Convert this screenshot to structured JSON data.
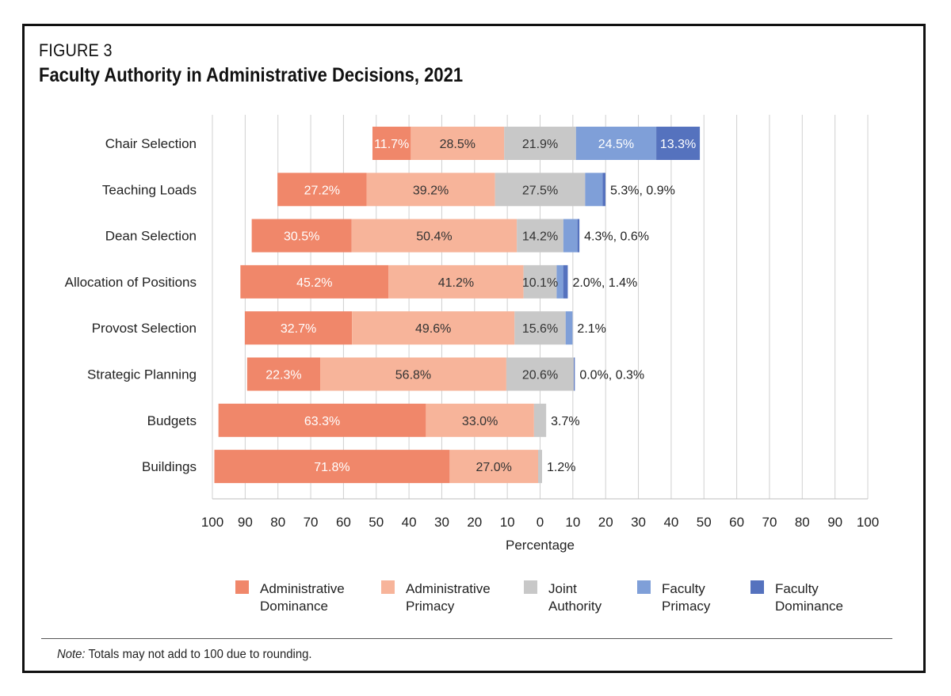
{
  "figure": {
    "label": "FIGURE 3",
    "title": "Faculty Authority in Administrative Decisions, 2021"
  },
  "note": {
    "lead": "Note:",
    "text": " Totals may not add to 100 due to rounding."
  },
  "chart_data": {
    "type": "bar",
    "orientation": "horizontal",
    "stacked": "diverging",
    "xlabel": "Percentage",
    "xlim": [
      -100,
      100
    ],
    "x_ticks": [
      "100",
      "90",
      "80",
      "70",
      "60",
      "50",
      "40",
      "30",
      "20",
      "10",
      "0",
      "10",
      "20",
      "30",
      "40",
      "50",
      "60",
      "70",
      "80",
      "90",
      "100"
    ],
    "grid": "vertical",
    "legend_position": "bottom",
    "categories": [
      "Chair Selection",
      "Teaching Loads",
      "Dean Selection",
      "Allocation of Positions",
      "Provost Selection",
      "Strategic Planning",
      "Budgets",
      "Buildings"
    ],
    "series": [
      {
        "name": "Administrative Dominance",
        "side": "left",
        "color": "#F0876A",
        "values": [
          11.7,
          27.2,
          30.5,
          45.2,
          32.7,
          22.3,
          63.3,
          71.8
        ]
      },
      {
        "name": "Administrative Primacy",
        "side": "left",
        "color": "#F7B49A",
        "values": [
          28.5,
          39.2,
          50.4,
          41.2,
          49.6,
          56.8,
          33.0,
          27.0
        ]
      },
      {
        "name": "Joint Authority",
        "side": "center",
        "color": "#C8C8C8",
        "values": [
          21.9,
          27.5,
          14.2,
          10.1,
          15.6,
          20.6,
          3.7,
          1.2
        ]
      },
      {
        "name": "Faculty Primacy",
        "side": "right",
        "color": "#7F9FD8",
        "values": [
          24.5,
          5.3,
          4.3,
          2.0,
          2.1,
          0.0,
          0.0,
          0.0
        ]
      },
      {
        "name": "Faculty Dominance",
        "side": "right",
        "color": "#5572BE",
        "values": [
          13.3,
          0.9,
          0.6,
          1.4,
          0.0,
          0.3,
          0.0,
          0.0
        ]
      }
    ],
    "data_labels": [
      {
        "category": "Chair Selection",
        "labels": [
          "11.7%",
          "28.5%",
          "21.9%",
          "24.5%",
          "13.3%"
        ],
        "outside": ""
      },
      {
        "category": "Teaching Loads",
        "labels": [
          "27.2%",
          "39.2%",
          "27.5%",
          "",
          ""
        ],
        "outside": "5.3%, 0.9%"
      },
      {
        "category": "Dean Selection",
        "labels": [
          "30.5%",
          "50.4%",
          "14.2%",
          "",
          ""
        ],
        "outside": "4.3%,  0.6%"
      },
      {
        "category": "Allocation of Positions",
        "labels": [
          "45.2%",
          "41.2%",
          "10.1%",
          "",
          ""
        ],
        "outside": "2.0%, 1.4%"
      },
      {
        "category": "Provost Selection",
        "labels": [
          "32.7%",
          "49.6%",
          "15.6%",
          "",
          ""
        ],
        "outside": "2.1%"
      },
      {
        "category": "Strategic Planning",
        "labels": [
          "22.3%",
          "56.8%",
          "20.6%",
          "",
          ""
        ],
        "outside": "0.0%, 0.3%"
      },
      {
        "category": "Budgets",
        "labels": [
          "63.3%",
          "33.0%",
          "",
          "",
          ""
        ],
        "outside": "3.7%"
      },
      {
        "category": "Buildings",
        "labels": [
          "71.8%",
          "27.0%",
          "",
          "",
          ""
        ],
        "outside": "1.2%"
      }
    ],
    "legend": [
      {
        "line1": "Administrative",
        "line2": "Dominance",
        "color": "#F0876A"
      },
      {
        "line1": "Administrative",
        "line2": "Primacy",
        "color": "#F7B49A"
      },
      {
        "line1": "Joint",
        "line2": "Authority",
        "color": "#C8C8C8"
      },
      {
        "line1": "Faculty",
        "line2": "Primacy",
        "color": "#7F9FD8"
      },
      {
        "line1": "Faculty",
        "line2": "Dominance",
        "color": "#5572BE"
      }
    ]
  }
}
